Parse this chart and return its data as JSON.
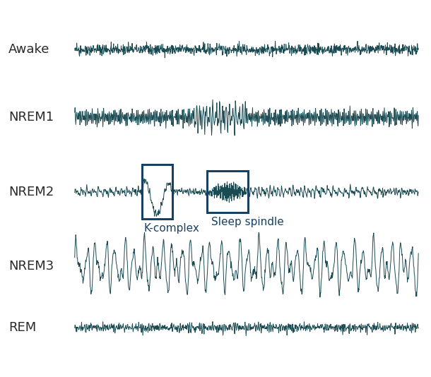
{
  "labels": [
    "Awake",
    "NREM1",
    "NREM2",
    "NREM3",
    "REM"
  ],
  "label_fontsize": 13,
  "line_color": "#1a4a52",
  "background_color": "#ffffff",
  "box_color": "#1a4060",
  "annotation_color": "#1a4060",
  "annotation_fontsize": 11,
  "k_complex_label": "K-complex",
  "spindle_label": "Sleep spindle",
  "figsize": [
    6.1,
    5.34
  ],
  "dpi": 100,
  "y_centers": [
    4.2,
    3.15,
    2.0,
    0.85,
    -0.1
  ],
  "amplitudes": [
    0.13,
    0.28,
    0.38,
    0.52,
    0.13
  ]
}
